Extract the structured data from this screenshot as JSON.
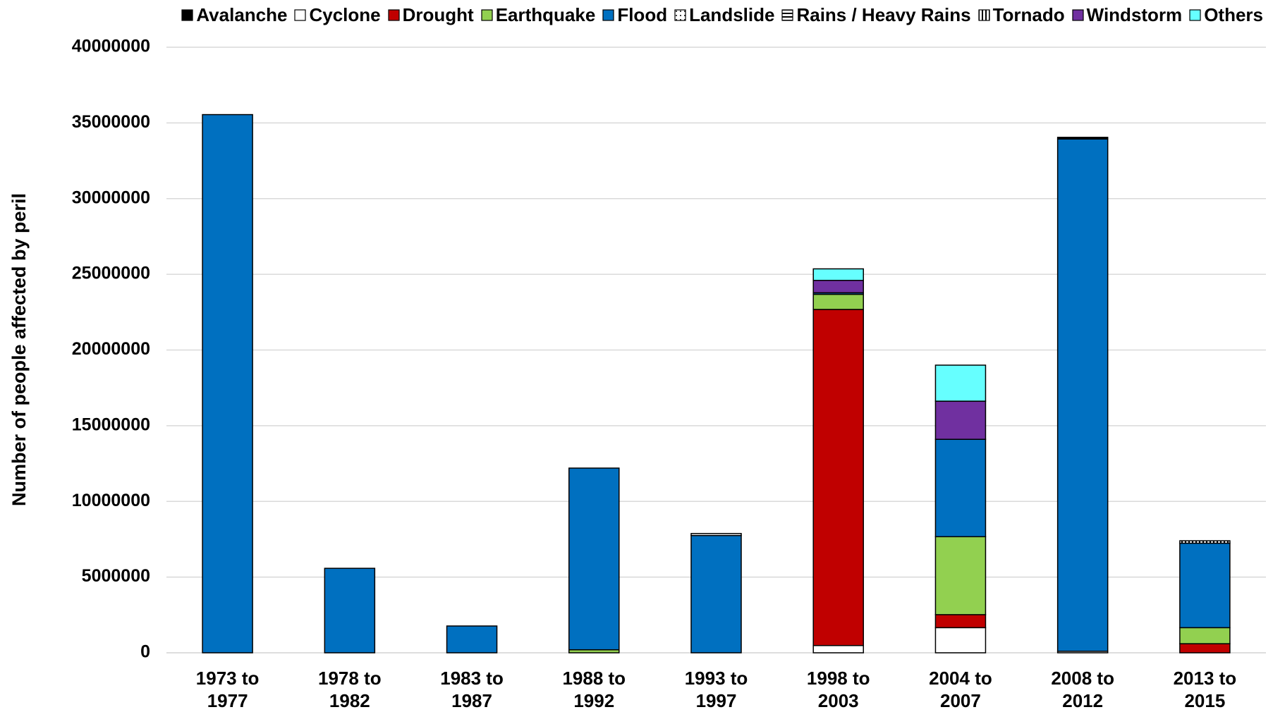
{
  "chart_data": {
    "type": "stacked_bar",
    "y_label": "Number of people affected by peril",
    "categories": [
      "1973 to 1977",
      "1978 to 1982",
      "1983 to 1987",
      "1988 to 1992",
      "1993 to 1997",
      "1998 to 2003",
      "2004 to 2007",
      "2008 to 2012",
      "2013 to 2015"
    ],
    "series": [
      {
        "name": "Avalanche",
        "color": "#000000",
        "values": [
          0,
          0,
          0,
          0,
          0,
          0,
          0,
          0,
          0
        ]
      },
      {
        "name": "Cyclone",
        "color": "#ffffff",
        "values": [
          0,
          0,
          0,
          0,
          0,
          480000,
          1660000,
          100000,
          0
        ]
      },
      {
        "name": "Drought",
        "color": "#c00000",
        "values": [
          0,
          0,
          0,
          0,
          0,
          22200000,
          860000,
          0,
          600000
        ]
      },
      {
        "name": "Earthquake",
        "color": "#92d050",
        "values": [
          0,
          0,
          0,
          200000,
          0,
          1000000,
          5150000,
          0,
          1060000
        ]
      },
      {
        "name": "Flood",
        "color": "#0070c0",
        "values": [
          35550000,
          5580000,
          1770000,
          12000000,
          7750000,
          100000,
          6430000,
          33840000,
          5580000
        ]
      },
      {
        "name": "Landslide",
        "color": "#ffffff",
        "pattern": "dots",
        "values": [
          0,
          0,
          0,
          0,
          0,
          0,
          0,
          0,
          0
        ]
      },
      {
        "name": "Rains / Heavy Rains",
        "color": "#ffffff",
        "pattern": "hlines",
        "values": [
          0,
          0,
          0,
          0,
          130000,
          0,
          0,
          110000,
          0
        ]
      },
      {
        "name": "Tornado",
        "color": "#ffffff",
        "pattern": "vlines",
        "values": [
          0,
          0,
          0,
          0,
          0,
          0,
          0,
          0,
          160000
        ]
      },
      {
        "name": "Windstorm",
        "color": "#7030a0",
        "values": [
          0,
          0,
          0,
          0,
          0,
          820000,
          2520000,
          0,
          0
        ]
      },
      {
        "name": "Others",
        "color": "#66ffff",
        "values": [
          0,
          0,
          0,
          0,
          0,
          760000,
          2380000,
          0,
          0
        ]
      }
    ],
    "ylim": [
      0,
      40000000
    ],
    "yticks": [
      0,
      5000000,
      10000000,
      15000000,
      20000000,
      25000000,
      30000000,
      35000000,
      40000000
    ],
    "grid": true,
    "legend": "top"
  }
}
